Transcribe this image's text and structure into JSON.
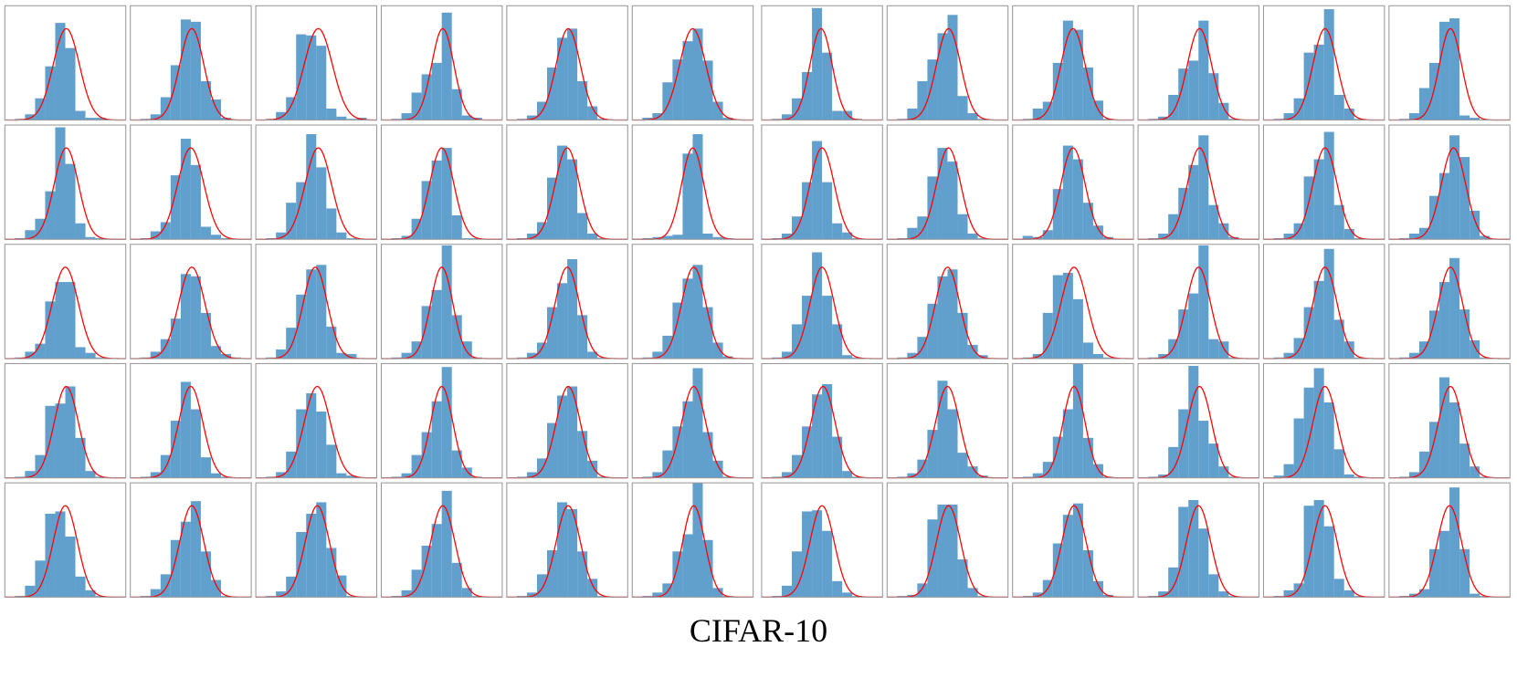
{
  "chart_data": {
    "type": "histogram-grid",
    "title": "CIFAR-10",
    "bar_color": "#619fcd",
    "fit_color": "#ff0000",
    "bins": [
      -5,
      -4,
      -3,
      -2,
      -1,
      0,
      1,
      2,
      3,
      4,
      5
    ],
    "xlim": [
      -6,
      6
    ],
    "ylim": [
      0,
      1
    ],
    "panels": [
      {
        "counts": [
          0.01,
          0.05,
          0.19,
          0.47,
          0.85,
          0.63,
          0.08,
          0.02,
          0.02,
          0
        ],
        "fit": {
          "mean": 0.1,
          "std": 1.3,
          "peak": 0.8
        }
      },
      {
        "counts": [
          0.01,
          0.05,
          0.2,
          0.48,
          0.88,
          0.86,
          0.34,
          0.18,
          0.02,
          0
        ],
        "fit": {
          "mean": 0.1,
          "std": 1.2,
          "peak": 0.8
        }
      },
      {
        "counts": [
          0.01,
          0.07,
          0.2,
          0.75,
          0.74,
          0.65,
          0.1,
          0.03,
          0.01,
          0.02
        ],
        "fit": {
          "mean": 0.2,
          "std": 1.4,
          "peak": 0.8
        }
      },
      {
        "counts": [
          0.01,
          0.06,
          0.24,
          0.4,
          0.5,
          0.94,
          0.27,
          0.04,
          0.02,
          0
        ],
        "fit": {
          "mean": 0.1,
          "std": 1.1,
          "peak": 0.8
        }
      },
      {
        "counts": [
          0.01,
          0.04,
          0.16,
          0.46,
          0.72,
          0.8,
          0.34,
          0.12,
          0.01,
          0
        ],
        "fit": {
          "mean": 0.1,
          "std": 1.2,
          "peak": 0.8
        }
      },
      {
        "counts": [
          0.02,
          0.06,
          0.33,
          0.53,
          0.69,
          0.8,
          0.52,
          0.16,
          0.02,
          0
        ],
        "fit": {
          "mean": 0,
          "std": 1.3,
          "peak": 0.8
        }
      },
      {
        "counts": [
          0.01,
          0.05,
          0.19,
          0.42,
          0.98,
          0.59,
          0.08,
          0.08,
          0.01,
          0
        ],
        "fit": {
          "mean": -0.1,
          "std": 1.1,
          "peak": 0.8
        }
      },
      {
        "counts": [
          0.01,
          0.1,
          0.34,
          0.53,
          0.76,
          0.92,
          0.21,
          0.06,
          0.01,
          0
        ],
        "fit": {
          "mean": 0.1,
          "std": 1.2,
          "peak": 0.8
        }
      },
      {
        "counts": [
          0.01,
          0.1,
          0.16,
          0.5,
          0.87,
          0.79,
          0.46,
          0.17,
          0.01,
          0
        ],
        "fit": {
          "mean": 0,
          "std": 1.2,
          "peak": 0.8
        }
      },
      {
        "counts": [
          0.01,
          0.03,
          0.22,
          0.45,
          0.52,
          0.87,
          0.41,
          0.15,
          0.01,
          0
        ],
        "fit": {
          "mean": 0.1,
          "std": 1.2,
          "peak": 0.8
        }
      },
      {
        "counts": [
          0.01,
          0.06,
          0.19,
          0.59,
          0.66,
          0.97,
          0.22,
          0.1,
          0.01,
          0
        ],
        "fit": {
          "mean": 0.1,
          "std": 1.2,
          "peak": 0.8
        }
      },
      {
        "counts": [
          0.01,
          0.06,
          0.28,
          0.5,
          0.86,
          0.89,
          0.04,
          0.02,
          0,
          0
        ],
        "fit": {
          "mean": 0.1,
          "std": 1.1,
          "peak": 0.8
        }
      },
      {
        "counts": [
          0.01,
          0.08,
          0.18,
          0.42,
          0.98,
          0.66,
          0.14,
          0.02,
          0.01,
          0
        ],
        "fit": {
          "mean": 0.1,
          "std": 1.2,
          "peak": 0.8
        }
      },
      {
        "counts": [
          0.01,
          0.07,
          0.15,
          0.56,
          0.88,
          0.65,
          0.11,
          0.04,
          0.01,
          0
        ],
        "fit": {
          "mean": 0,
          "std": 1.3,
          "peak": 0.8
        }
      },
      {
        "counts": [
          0.01,
          0.06,
          0.32,
          0.5,
          0.92,
          0.63,
          0.27,
          0.06,
          0.01,
          0
        ],
        "fit": {
          "mean": 0.2,
          "std": 1.3,
          "peak": 0.8
        }
      },
      {
        "counts": [
          0.01,
          0.03,
          0.18,
          0.51,
          0.69,
          0.8,
          0.21,
          0.01,
          0.01,
          0
        ],
        "fit": {
          "mean": 0,
          "std": 1.2,
          "peak": 0.8
        }
      },
      {
        "counts": [
          0.01,
          0.05,
          0.15,
          0.54,
          0.82,
          0.7,
          0.23,
          0.05,
          0.01,
          0
        ],
        "fit": {
          "mean": 0,
          "std": 1.2,
          "peak": 0.8
        }
      },
      {
        "counts": [
          0.01,
          0.02,
          0.03,
          0.04,
          0.75,
          0.92,
          0.05,
          0.02,
          0.01,
          0
        ],
        "fit": {
          "mean": 0,
          "std": 1.1,
          "peak": 0.8
        }
      },
      {
        "counts": [
          0.01,
          0.05,
          0.2,
          0.5,
          0.86,
          0.5,
          0.14,
          0.06,
          0.01,
          0
        ],
        "fit": {
          "mean": 0,
          "std": 1.2,
          "peak": 0.8
        }
      },
      {
        "counts": [
          0.01,
          0.1,
          0.2,
          0.55,
          0.8,
          0.68,
          0.22,
          0.05,
          0.01,
          0
        ],
        "fit": {
          "mean": 0.1,
          "std": 1.2,
          "peak": 0.8
        }
      },
      {
        "counts": [
          0.03,
          0.02,
          0.08,
          0.44,
          0.82,
          0.7,
          0.32,
          0.12,
          0.02,
          0
        ],
        "fit": {
          "mean": 0,
          "std": 1.2,
          "peak": 0.8
        }
      },
      {
        "counts": [
          0.01,
          0.05,
          0.22,
          0.45,
          0.65,
          0.91,
          0.3,
          0.14,
          0.02,
          0
        ],
        "fit": {
          "mean": 0.1,
          "std": 1.2,
          "peak": 0.8
        }
      },
      {
        "counts": [
          0.01,
          0.05,
          0.14,
          0.55,
          0.7,
          0.94,
          0.3,
          0.09,
          0.01,
          0
        ],
        "fit": {
          "mean": 0.1,
          "std": 1.2,
          "peak": 0.8
        }
      },
      {
        "counts": [
          0.01,
          0.05,
          0.1,
          0.38,
          0.58,
          0.91,
          0.72,
          0.25,
          0.03,
          0
        ],
        "fit": {
          "mean": 0.4,
          "std": 1.2,
          "peak": 0.8
        }
      },
      {
        "counts": [
          0.01,
          0.06,
          0.13,
          0.5,
          0.67,
          0.67,
          0.1,
          0.05,
          0.01,
          0
        ],
        "fit": {
          "mean": 0,
          "std": 1.3,
          "peak": 0.8
        }
      },
      {
        "counts": [
          0.01,
          0.06,
          0.17,
          0.35,
          0.74,
          0.72,
          0.4,
          0.11,
          0.04,
          0.01
        ],
        "fit": {
          "mean": 0.1,
          "std": 1.3,
          "peak": 0.8
        }
      },
      {
        "counts": [
          0.01,
          0.08,
          0.27,
          0.56,
          0.78,
          0.82,
          0.28,
          0.05,
          0.04,
          0
        ],
        "fit": {
          "mean": -0.1,
          "std": 1.2,
          "peak": 0.8
        }
      },
      {
        "counts": [
          0.01,
          0.05,
          0.15,
          0.46,
          0.6,
          0.99,
          0.38,
          0.15,
          0.01,
          0
        ],
        "fit": {
          "mean": 0,
          "std": 1.1,
          "peak": 0.8
        }
      },
      {
        "counts": [
          0.01,
          0.05,
          0.14,
          0.45,
          0.66,
          0.87,
          0.38,
          0.06,
          0.01,
          0
        ],
        "fit": {
          "mean": 0,
          "std": 1.2,
          "peak": 0.8
        }
      },
      {
        "counts": [
          0.01,
          0.06,
          0.2,
          0.49,
          0.7,
          0.82,
          0.45,
          0.14,
          0.02,
          0
        ],
        "fit": {
          "mean": 0.1,
          "std": 1.2,
          "peak": 0.8
        }
      },
      {
        "counts": [
          0.01,
          0.06,
          0.3,
          0.55,
          0.93,
          0.55,
          0.3,
          0.03,
          0.01,
          0
        ],
        "fit": {
          "mean": 0,
          "std": 1.2,
          "peak": 0.8
        }
      },
      {
        "counts": [
          0.01,
          0.05,
          0.19,
          0.48,
          0.72,
          0.78,
          0.4,
          0.12,
          0.03,
          0
        ],
        "fit": {
          "mean": 0,
          "std": 1.2,
          "peak": 0.8
        }
      },
      {
        "counts": [
          0.01,
          0.04,
          0.4,
          0.73,
          0.75,
          0.52,
          0.14,
          0.04,
          0.01,
          0
        ],
        "fit": {
          "mean": 0.1,
          "std": 1.3,
          "peak": 0.8
        }
      },
      {
        "counts": [
          0.01,
          0.04,
          0.17,
          0.43,
          0.57,
          0.99,
          0.17,
          0.15,
          0.01,
          0
        ],
        "fit": {
          "mean": 0,
          "std": 1.2,
          "peak": 0.8
        }
      },
      {
        "counts": [
          0.01,
          0.05,
          0.18,
          0.45,
          0.68,
          0.96,
          0.34,
          0.15,
          0.01,
          0
        ],
        "fit": {
          "mean": 0.1,
          "std": 1.2,
          "peak": 0.8
        }
      },
      {
        "counts": [
          0.01,
          0.05,
          0.15,
          0.42,
          0.67,
          0.88,
          0.43,
          0.16,
          0.01,
          0
        ],
        "fit": {
          "mean": 0.1,
          "std": 1.2,
          "peak": 0.8
        }
      },
      {
        "counts": [
          0.01,
          0.06,
          0.2,
          0.63,
          0.65,
          0.8,
          0.35,
          0.06,
          0.01,
          0
        ],
        "fit": {
          "mean": 0.1,
          "std": 1.2,
          "peak": 0.8
        }
      },
      {
        "counts": [
          0.01,
          0.05,
          0.2,
          0.5,
          0.84,
          0.6,
          0.18,
          0.04,
          0.01,
          0
        ],
        "fit": {
          "mean": 0,
          "std": 1.2,
          "peak": 0.8
        }
      },
      {
        "counts": [
          0.01,
          0.05,
          0.23,
          0.6,
          0.74,
          0.58,
          0.29,
          0.04,
          0.02,
          0
        ],
        "fit": {
          "mean": 0.1,
          "std": 1.3,
          "peak": 0.8
        }
      },
      {
        "counts": [
          0.01,
          0.04,
          0.2,
          0.4,
          0.67,
          0.97,
          0.24,
          0.09,
          0.01,
          0
        ],
        "fit": {
          "mean": 0,
          "std": 1.1,
          "peak": 0.8
        }
      },
      {
        "counts": [
          0.01,
          0.05,
          0.17,
          0.48,
          0.72,
          0.8,
          0.41,
          0.15,
          0.01,
          0
        ],
        "fit": {
          "mean": 0.1,
          "std": 1.2,
          "peak": 0.8
        }
      },
      {
        "counts": [
          0.01,
          0.05,
          0.24,
          0.45,
          0.67,
          0.96,
          0.4,
          0.15,
          0.01,
          0
        ],
        "fit": {
          "mean": 0.1,
          "std": 1.2,
          "peak": 0.8
        }
      },
      {
        "counts": [
          0.01,
          0.05,
          0.2,
          0.45,
          0.73,
          0.82,
          0.36,
          0.06,
          0.01,
          0
        ],
        "fit": {
          "mean": 0.1,
          "std": 1.2,
          "peak": 0.8
        }
      },
      {
        "counts": [
          0.01,
          0.04,
          0.16,
          0.42,
          0.85,
          0.6,
          0.22,
          0.1,
          0.02,
          0
        ],
        "fit": {
          "mean": 0,
          "std": 1.2,
          "peak": 0.8
        }
      },
      {
        "counts": [
          0.01,
          0.04,
          0.14,
          0.36,
          0.6,
          1.0,
          0.35,
          0.12,
          0.01,
          0
        ],
        "fit": {
          "mean": 0.1,
          "std": 1.1,
          "peak": 0.8
        }
      },
      {
        "counts": [
          0.01,
          0.03,
          0.27,
          0.6,
          0.98,
          0.5,
          0.3,
          0.1,
          0.01,
          0
        ],
        "fit": {
          "mean": 0.1,
          "std": 1.2,
          "peak": 0.8
        }
      },
      {
        "counts": [
          0.02,
          0.12,
          0.52,
          0.79,
          0.96,
          0.66,
          0.25,
          0.03,
          0.01,
          0
        ],
        "fit": {
          "mean": 0.1,
          "std": 1.2,
          "peak": 0.8
        }
      },
      {
        "counts": [
          0.01,
          0.05,
          0.23,
          0.49,
          0.88,
          0.66,
          0.3,
          0.1,
          0.01,
          0
        ],
        "fit": {
          "mean": 0.1,
          "std": 1.2,
          "peak": 0.8
        }
      },
      {
        "counts": [
          0.01,
          0.1,
          0.32,
          0.73,
          0.75,
          0.53,
          0.18,
          0.06,
          0.01,
          0
        ],
        "fit": {
          "mean": 0,
          "std": 1.2,
          "peak": 0.8
        }
      },
      {
        "counts": [
          0.01,
          0.07,
          0.2,
          0.5,
          0.66,
          0.84,
          0.4,
          0.15,
          0.01,
          0
        ],
        "fit": {
          "mean": 0.1,
          "std": 1.2,
          "peak": 0.8
        }
      },
      {
        "counts": [
          0.01,
          0.05,
          0.18,
          0.57,
          0.73,
          0.83,
          0.43,
          0.19,
          0.01,
          0
        ],
        "fit": {
          "mean": 0.1,
          "std": 1.2,
          "peak": 0.8
        }
      },
      {
        "counts": [
          0.01,
          0.06,
          0.24,
          0.45,
          0.64,
          0.93,
          0.3,
          0.08,
          0.01,
          0
        ],
        "fit": {
          "mean": 0.1,
          "std": 1.2,
          "peak": 0.8
        }
      },
      {
        "counts": [
          0.01,
          0.04,
          0.2,
          0.41,
          0.83,
          0.77,
          0.4,
          0.16,
          0.01,
          0
        ],
        "fit": {
          "mean": 0.1,
          "std": 1.2,
          "peak": 0.8
        }
      },
      {
        "counts": [
          0.01,
          0.04,
          0.12,
          0.4,
          0.55,
          1.0,
          0.5,
          0.08,
          0.01,
          0
        ],
        "fit": {
          "mean": 0.1,
          "std": 1.1,
          "peak": 0.8
        }
      },
      {
        "counts": [
          0.01,
          0.1,
          0.4,
          0.75,
          0.76,
          0.58,
          0.14,
          0.04,
          0.01,
          0
        ],
        "fit": {
          "mean": 0,
          "std": 1.2,
          "peak": 0.8
        }
      },
      {
        "counts": [
          0.01,
          0.02,
          0.12,
          0.68,
          0.81,
          0.81,
          0.33,
          0.08,
          0.01,
          0
        ],
        "fit": {
          "mean": 0.1,
          "std": 1.2,
          "peak": 0.8
        }
      },
      {
        "counts": [
          0.01,
          0.04,
          0.15,
          0.47,
          0.72,
          0.82,
          0.41,
          0.14,
          0.02,
          0
        ],
        "fit": {
          "mean": 0.1,
          "std": 1.2,
          "peak": 0.8
        }
      },
      {
        "counts": [
          0.01,
          0.05,
          0.26,
          0.79,
          0.85,
          0.6,
          0.2,
          0.05,
          0.01,
          0
        ],
        "fit": {
          "mean": 0,
          "std": 1.2,
          "peak": 0.8
        }
      },
      {
        "counts": [
          0.01,
          0.06,
          0.12,
          0.8,
          0.85,
          0.62,
          0.16,
          0.06,
          0.01,
          0
        ],
        "fit": {
          "mean": 0.1,
          "std": 1.2,
          "peak": 0.8
        }
      },
      {
        "counts": [
          0.01,
          0.03,
          0.07,
          0.42,
          0.58,
          0.96,
          0.42,
          0.03,
          0.01,
          0
        ],
        "fit": {
          "mean": 0,
          "std": 1.2,
          "peak": 0.8
        }
      }
    ],
    "columns": 12
  }
}
